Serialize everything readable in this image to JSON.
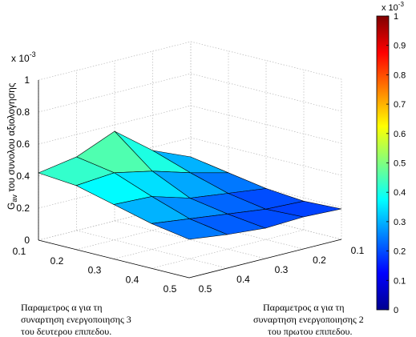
{
  "chart_data": {
    "type": "surface",
    "zlabel_main": "G",
    "zlabel_sub": "av",
    "zlabel_rest": " του συνολου αξιολογησης",
    "z_multiplier_base": "x 10",
    "z_multiplier_exp": "-3",
    "z_ticks": [
      "0",
      "0.2",
      "0.4",
      "0.6",
      "0.8",
      "1"
    ],
    "zlim": [
      0,
      1
    ],
    "x_axis": {
      "label_line1": "Παραμετρος α για τη",
      "label_line2": "συναρτηση ενεργοποιησης 2",
      "label_line3": "του πρωτου επιπεδου.",
      "ticks": [
        "0.1",
        "0.2",
        "0.3",
        "0.4",
        "0.5"
      ],
      "values": [
        0.1,
        0.2,
        0.3,
        0.4,
        0.5
      ]
    },
    "y_axis": {
      "label_line1": "Παραμετρος α για τη",
      "label_line2": "συναρτηση ενεργοποιησης 3",
      "label_line3": "του δευτερου επιπεδου.",
      "ticks": [
        "0.1",
        "0.2",
        "0.3",
        "0.4",
        "0.5"
      ],
      "values": [
        0.1,
        0.2,
        0.3,
        0.4,
        0.5
      ]
    },
    "z_values_note_rows_by_y_cols_by_x": "",
    "z": [
      [
        0.42,
        0.46,
        0.56,
        0.38,
        0.28
      ],
      [
        0.4,
        0.42,
        0.37,
        0.3,
        0.24
      ],
      [
        0.34,
        0.33,
        0.26,
        0.23,
        0.2
      ],
      [
        0.28,
        0.25,
        0.22,
        0.19,
        0.18
      ],
      [
        0.24,
        0.21,
        0.19,
        0.2,
        0.19
      ]
    ],
    "colorbar": {
      "multiplier_base": "x 10",
      "multiplier_exp": "-3",
      "ticks": [
        "0",
        "0.1",
        "0.2",
        "0.3",
        "0.4",
        "0.5",
        "0.6",
        "0.7",
        "0.8",
        "0.9",
        "1"
      ],
      "range": [
        0,
        1
      ],
      "colormap": "jet"
    },
    "grid": true,
    "surface_color": "#2a7fe8",
    "edge_color": "#000000"
  }
}
